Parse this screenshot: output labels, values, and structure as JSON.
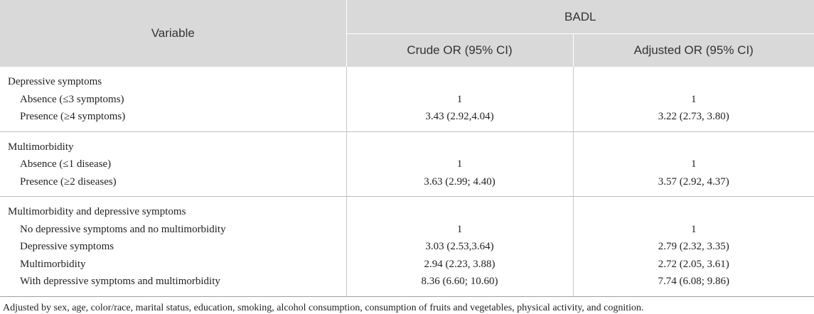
{
  "header": {
    "variable": "Variable",
    "group": "BADL",
    "crude": "Crude OR (95% CI)",
    "adjusted": "Adjusted OR (95% CI)"
  },
  "groups": [
    {
      "title": "Depressive symptoms",
      "rows": [
        {
          "label": "Absence (≤3 symptoms)",
          "crude": "1",
          "adjusted": "1"
        },
        {
          "label": "Presence (≥4 symptoms)",
          "crude": "3.43 (2.92,4.04)",
          "adjusted": "3.22 (2.73, 3.80)"
        }
      ]
    },
    {
      "title": "Multimorbidity",
      "rows": [
        {
          "label": "Absence (≤1 disease)",
          "crude": "1",
          "adjusted": "1"
        },
        {
          "label": "Presence (≥2 diseases)",
          "crude": "3.63 (2.99; 4.40)",
          "adjusted": "3.57 (2.92, 4.37)"
        }
      ]
    },
    {
      "title": "Multimorbidity and depressive symptoms",
      "rows": [
        {
          "label": "No depressive symptoms and no multimorbidity",
          "crude": "1",
          "adjusted": "1"
        },
        {
          "label": "Depressive symptoms",
          "crude": "3.03 (2.53,3.64)",
          "adjusted": "2.79 (2.32, 3.35)"
        },
        {
          "label": "Multimorbidity",
          "crude": "2.94 (2.23, 3.88)",
          "adjusted": "2.72 (2.05, 3.61)"
        },
        {
          "label": "With depressive symptoms and multimorbidity",
          "crude": "8.36 (6.60; 10.60)",
          "adjusted": "7.74 (6.08; 9.86)"
        }
      ]
    }
  ],
  "footnote": "Adjusted by sex, age, color/race, marital status, education, smoking, alcohol consumption, consumption of fruits and vegetables, physical activity, and cognition."
}
